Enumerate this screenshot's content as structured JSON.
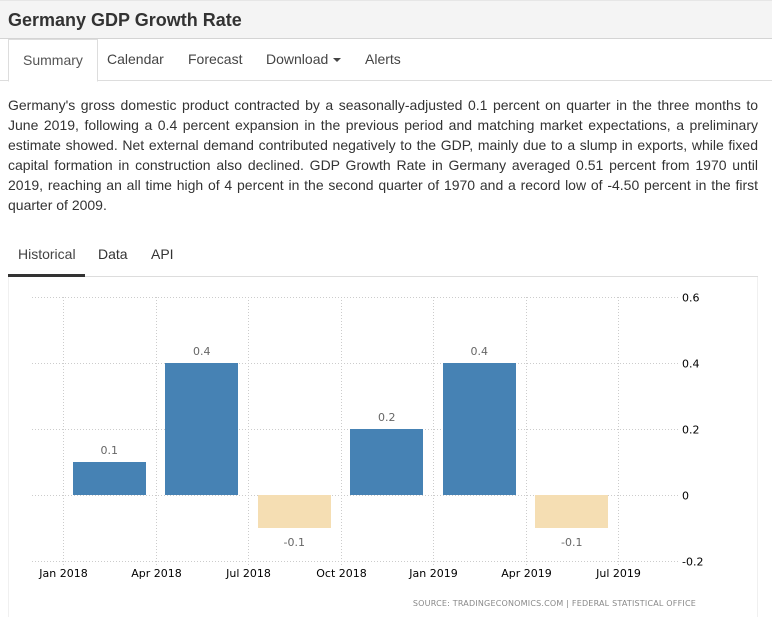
{
  "header": {
    "title": "Germany GDP Growth Rate"
  },
  "nav": {
    "tabs": [
      {
        "label": "Summary",
        "active": true
      },
      {
        "label": "Calendar",
        "active": false
      },
      {
        "label": "Forecast",
        "active": false
      },
      {
        "label": "Download",
        "active": false,
        "dropdown": true
      },
      {
        "label": "Alerts",
        "active": false
      }
    ]
  },
  "summary": {
    "text": "Germany's gross domestic product contracted by a seasonally-adjusted 0.1 percent on quarter in the three months to June 2019, following a 0.4 percent expansion in the previous period and matching market expectations, a preliminary estimate showed. Net external demand contributed negatively to the GDP, mainly due to a slump in exports, while fixed capital formation in construction also declined. GDP Growth Rate in Germany averaged 0.51 percent from 1970 until 2019, reaching an all time high of 4 percent in the second quarter of 1970 and a record low of -4.50 percent in the first quarter of 2009."
  },
  "chart_tabs": [
    {
      "label": "Historical",
      "active": true
    },
    {
      "label": "Data",
      "active": false
    },
    {
      "label": "API",
      "active": false
    }
  ],
  "colors": {
    "positive": "#4682b4",
    "negative": "#f5deb3"
  },
  "chart_data": {
    "type": "bar",
    "title": "Germany GDP Growth Rate",
    "xlabel": "",
    "ylabel": "",
    "categories": [
      "Q1 2018",
      "Q2 2018",
      "Q3 2018",
      "Q4 2018",
      "Q1 2019",
      "Q2 2019"
    ],
    "values": [
      0.1,
      0.4,
      -0.1,
      0.2,
      0.4,
      -0.1
    ],
    "data_labels": [
      "0.1",
      "0.4",
      "-0.1",
      "0.2",
      "0.4",
      "-0.1"
    ],
    "x_ticks": [
      "Jan 2018",
      "Apr 2018",
      "Jul 2018",
      "Oct 2018",
      "Jan 2019",
      "Apr 2019",
      "Jul 2019"
    ],
    "y_ticks": [
      0.6,
      0.4,
      0.2,
      0,
      -0.2
    ],
    "y_tick_labels": [
      "0.6",
      "0.4",
      "0.2",
      "0",
      "-0.2"
    ],
    "ylim": [
      -0.2,
      0.6
    ],
    "y_axis_side": "right",
    "grid": true,
    "legend": "none",
    "source": "SOURCE: TRADINGECONOMICS.COM  |  FEDERAL STATISTICAL OFFICE"
  }
}
